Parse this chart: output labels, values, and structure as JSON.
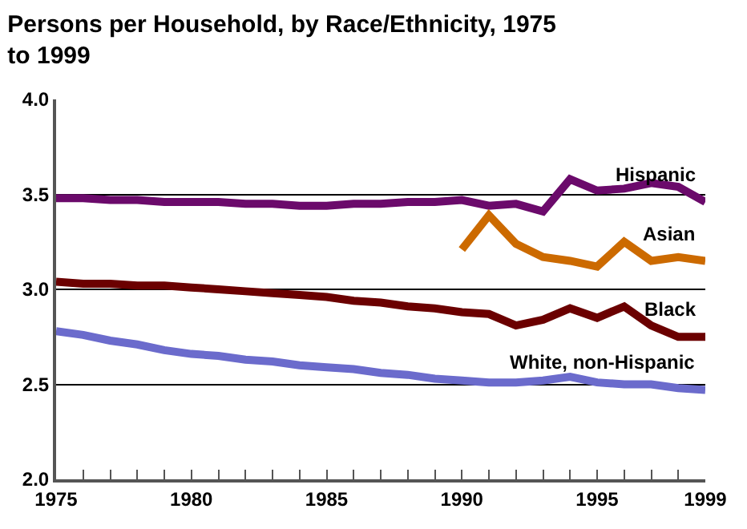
{
  "chart_data": {
    "type": "line",
    "title": "Persons per Household, by Race/Ethnicity, 1975 to 1999",
    "x": [
      1975,
      1976,
      1977,
      1978,
      1979,
      1980,
      1981,
      1982,
      1983,
      1984,
      1985,
      1986,
      1987,
      1988,
      1989,
      1990,
      1991,
      1992,
      1993,
      1994,
      1995,
      1996,
      1997,
      1998,
      1999
    ],
    "series": [
      {
        "name": "Hispanic",
        "color": "#6b0a6b",
        "values": [
          3.48,
          3.48,
          3.47,
          3.47,
          3.46,
          3.46,
          3.46,
          3.45,
          3.45,
          3.44,
          3.44,
          3.45,
          3.45,
          3.46,
          3.46,
          3.47,
          3.44,
          3.45,
          3.41,
          3.58,
          3.52,
          3.53,
          3.56,
          3.54,
          3.46
        ]
      },
      {
        "name": "Asian",
        "color": "#cc6a00",
        "values": [
          null,
          null,
          null,
          null,
          null,
          null,
          null,
          null,
          null,
          null,
          null,
          null,
          null,
          null,
          null,
          3.21,
          3.39,
          3.24,
          3.17,
          3.15,
          3.12,
          3.25,
          3.15,
          3.17,
          3.15
        ]
      },
      {
        "name": "Black",
        "color": "#6b0000",
        "values": [
          3.04,
          3.03,
          3.03,
          3.02,
          3.02,
          3.01,
          3.0,
          2.99,
          2.98,
          2.97,
          2.96,
          2.94,
          2.93,
          2.91,
          2.9,
          2.88,
          2.87,
          2.81,
          2.84,
          2.9,
          2.85,
          2.91,
          2.81,
          2.75,
          2.75
        ]
      },
      {
        "name": "White, non-Hispanic",
        "color": "#6b6bcc",
        "values": [
          2.78,
          2.76,
          2.73,
          2.71,
          2.68,
          2.66,
          2.65,
          2.63,
          2.62,
          2.6,
          2.59,
          2.58,
          2.56,
          2.55,
          2.53,
          2.52,
          2.51,
          2.51,
          2.52,
          2.54,
          2.51,
          2.5,
          2.5,
          2.48,
          2.47
        ]
      }
    ],
    "xlim": [
      1975,
      1999
    ],
    "xticks": [
      1975,
      {
        "value": 1976,
        "label": null
      },
      {
        "value": 1977,
        "label": null
      },
      {
        "value": 1978,
        "label": null
      },
      {
        "value": 1979,
        "label": null
      },
      1980,
      {
        "value": 1981,
        "label": null
      },
      {
        "value": 1982,
        "label": null
      },
      {
        "value": 1983,
        "label": null
      },
      {
        "value": 1984,
        "label": null
      },
      1985,
      {
        "value": 1986,
        "label": null
      },
      {
        "value": 1987,
        "label": null
      },
      {
        "value": 1988,
        "label": null
      },
      {
        "value": 1989,
        "label": null
      },
      1990,
      {
        "value": 1991,
        "label": null
      },
      {
        "value": 1992,
        "label": null
      },
      {
        "value": 1993,
        "label": null
      },
      {
        "value": 1994,
        "label": null
      },
      1995,
      {
        "value": 1996,
        "label": null
      },
      {
        "value": 1997,
        "label": null
      },
      {
        "value": 1998,
        "label": null
      },
      1999
    ],
    "ylim": [
      2.0,
      4.0
    ],
    "yticks": [
      {
        "value": 2.0,
        "label": "2.0"
      },
      {
        "value": 2.5,
        "label": "2.5"
      },
      {
        "value": 3.0,
        "label": "3.0"
      },
      {
        "value": 3.5,
        "label": "3.5"
      },
      {
        "value": 4.0,
        "label": "4.0"
      }
    ],
    "grid": "y",
    "legend": false,
    "marker": "none",
    "line_style": "solid"
  }
}
